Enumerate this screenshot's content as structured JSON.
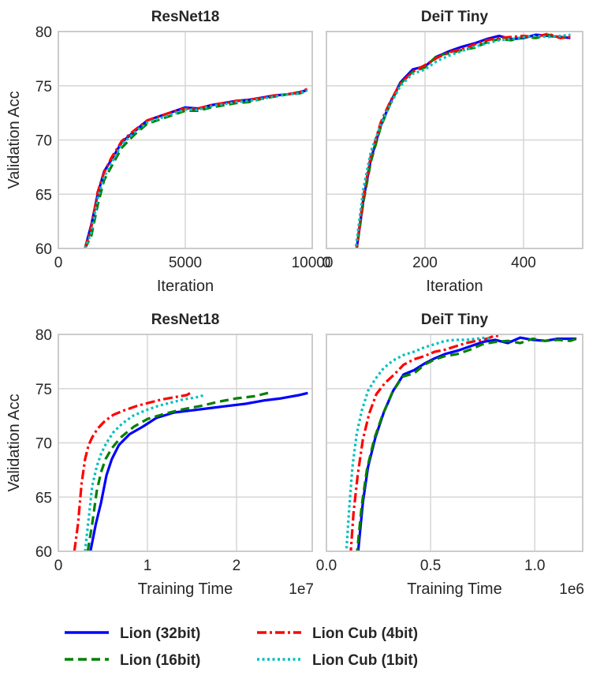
{
  "chart_data": [
    {
      "type": "line",
      "title": "ResNet18",
      "xlabel": "Iteration",
      "ylabel": "Validation Acc",
      "xlim": [
        0,
        10000
      ],
      "ylim": [
        60,
        80
      ],
      "xticks": [
        0,
        5000,
        10000
      ],
      "xtick_labels": [
        "0",
        "5000",
        "10000"
      ],
      "yticks": [
        60,
        65,
        70,
        75,
        80
      ],
      "ytick_labels": [
        "60",
        "65",
        "70",
        "75",
        "80"
      ],
      "x_offset_text": "",
      "series": [
        {
          "name": "Lion (32bit)",
          "x": [
            1050,
            1300,
            1550,
            1800,
            2100,
            2500,
            3000,
            3500,
            4000,
            4500,
            5000,
            5500,
            6000,
            6500,
            7000,
            7500,
            8000,
            8500,
            9000,
            9500,
            9800
          ],
          "y": [
            60.0,
            62.2,
            65.0,
            67.1,
            68.2,
            69.8,
            70.8,
            71.8,
            72.2,
            72.6,
            73.0,
            72.9,
            73.2,
            73.4,
            73.6,
            73.7,
            73.9,
            74.1,
            74.2,
            74.4,
            74.6
          ]
        },
        {
          "name": "Lion (16bit)",
          "x": [
            1050,
            1300,
            1550,
            1800,
            2100,
            2500,
            3000,
            3500,
            4000,
            4500,
            5000,
            5500,
            6000,
            6500,
            7000,
            7500,
            8000,
            8500,
            9000,
            9500,
            9800
          ],
          "y": [
            60.0,
            61.2,
            64.0,
            66.3,
            67.6,
            69.3,
            70.5,
            71.5,
            71.9,
            72.3,
            72.7,
            72.7,
            73.0,
            73.2,
            73.4,
            73.5,
            73.8,
            74.0,
            74.2,
            74.3,
            74.5
          ]
        },
        {
          "name": "Lion Cub (4bit)",
          "x": [
            1050,
            1300,
            1550,
            1800,
            2100,
            2500,
            3000,
            3500,
            4000,
            4500,
            5000,
            5500,
            6000,
            6500,
            7000,
            7500,
            8000,
            8500,
            9000,
            9500,
            9800
          ],
          "y": [
            60.0,
            62.0,
            65.2,
            67.0,
            68.4,
            69.9,
            70.9,
            71.8,
            72.2,
            72.6,
            72.9,
            72.9,
            73.2,
            73.4,
            73.6,
            73.7,
            73.9,
            74.1,
            74.2,
            74.4,
            74.7
          ]
        },
        {
          "name": "Lion Cub (1bit)",
          "x": [
            1050,
            1300,
            1550,
            1800,
            2100,
            2500,
            3000,
            3500,
            4000,
            4500,
            5000,
            5500,
            6000,
            6500,
            7000,
            7500,
            8000,
            8500,
            9000,
            9500,
            9800
          ],
          "y": [
            60.0,
            61.5,
            64.6,
            66.6,
            67.9,
            69.6,
            70.7,
            71.6,
            72.0,
            72.4,
            72.8,
            72.8,
            73.1,
            73.3,
            73.5,
            73.6,
            73.8,
            74.0,
            74.2,
            74.3,
            74.6
          ]
        }
      ]
    },
    {
      "type": "line",
      "title": "DeiT Tiny",
      "xlabel": "Iteration",
      "ylabel": "",
      "xlim": [
        0,
        520
      ],
      "ylim": [
        60,
        80
      ],
      "xticks": [
        0,
        200,
        400
      ],
      "xtick_labels": [
        "0",
        "200",
        "400"
      ],
      "yticks": [
        60,
        65,
        70,
        75,
        80
      ],
      "ytick_labels": [],
      "x_offset_text": "",
      "series": [
        {
          "name": "Lion (32bit)",
          "x": [
            60,
            75,
            90,
            110,
            130,
            150,
            175,
            200,
            225,
            250,
            275,
            300,
            325,
            350,
            375,
            400,
            425,
            450,
            475,
            495
          ],
          "y": [
            59.5,
            64.5,
            68.2,
            71.3,
            73.5,
            75.3,
            76.5,
            76.8,
            77.7,
            78.2,
            78.6,
            78.9,
            79.3,
            79.6,
            79.3,
            79.4,
            79.7,
            79.6,
            79.5,
            79.4
          ]
        },
        {
          "name": "Lion (16bit)",
          "x": [
            60,
            75,
            90,
            110,
            130,
            150,
            175,
            200,
            225,
            250,
            275,
            300,
            325,
            350,
            375,
            400,
            425,
            450,
            475,
            495
          ],
          "y": [
            59.5,
            64.3,
            68.0,
            71.2,
            73.4,
            75.2,
            76.3,
            76.7,
            77.8,
            78.0,
            78.3,
            78.5,
            79.0,
            79.3,
            79.2,
            79.5,
            79.4,
            79.7,
            79.4,
            79.6
          ]
        },
        {
          "name": "Lion Cub (4bit)",
          "x": [
            60,
            75,
            90,
            110,
            130,
            150,
            175,
            200,
            225,
            250,
            275,
            300,
            325,
            350,
            375,
            400,
            425,
            450,
            475,
            495
          ],
          "y": [
            59.6,
            64.8,
            68.5,
            71.6,
            73.6,
            75.2,
            76.3,
            76.9,
            77.6,
            78.1,
            78.4,
            78.8,
            79.2,
            79.4,
            79.5,
            79.6,
            79.5,
            79.8,
            79.4,
            79.5
          ]
        },
        {
          "name": "Lion Cub (1bit)",
          "x": [
            60,
            75,
            90,
            110,
            130,
            150,
            175,
            200,
            225,
            250,
            275,
            300,
            325,
            350,
            375,
            400,
            425,
            450,
            475,
            495
          ],
          "y": [
            60.2,
            65.5,
            68.9,
            71.4,
            73.3,
            75.0,
            76.1,
            76.5,
            77.3,
            77.8,
            78.2,
            78.6,
            78.9,
            79.2,
            79.3,
            79.5,
            79.6,
            79.5,
            79.6,
            79.7
          ]
        }
      ]
    },
    {
      "type": "line",
      "title": "ResNet18",
      "xlabel": "Training Time",
      "ylabel": "Validation Acc",
      "xlim": [
        0,
        28500000
      ],
      "ylim": [
        60,
        80
      ],
      "xticks": [
        0,
        10000000,
        20000000
      ],
      "xtick_labels": [
        "0",
        "1",
        "2"
      ],
      "yticks": [
        60,
        65,
        70,
        75,
        80
      ],
      "ytick_labels": [
        "60",
        "65",
        "70",
        "75",
        "80"
      ],
      "x_offset_text": "1e7",
      "series": [
        {
          "name": "Lion (32bit)",
          "x": [
            3600000,
            4200000,
            4800000,
            5400000,
            6000000,
            6800000,
            8000000,
            9500000,
            11000000,
            13000000,
            15000000,
            17000000,
            19000000,
            21000000,
            23000000,
            25000000,
            27000000,
            28000000
          ],
          "y": [
            60.0,
            62.5,
            64.5,
            67.0,
            68.5,
            69.8,
            70.8,
            71.5,
            72.3,
            72.8,
            73.0,
            73.2,
            73.4,
            73.6,
            73.9,
            74.1,
            74.4,
            74.6
          ]
        },
        {
          "name": "Lion (16bit)",
          "x": [
            3300000,
            3800000,
            4300000,
            4800000,
            5300000,
            6000000,
            7000000,
            8500000,
            10000000,
            12000000,
            14000000,
            16000000,
            18000000,
            20000000,
            22000000,
            24000000
          ],
          "y": [
            60.0,
            62.5,
            65.5,
            67.3,
            68.5,
            69.5,
            70.5,
            71.5,
            72.2,
            72.7,
            73.1,
            73.4,
            73.8,
            74.1,
            74.3,
            74.7
          ]
        },
        {
          "name": "Lion Cub (4bit)",
          "x": [
            1800000,
            2200000,
            2600000,
            3000000,
            3400000,
            3800000,
            4400000,
            5200000,
            6200000,
            7400000,
            8800000,
            10200000,
            11600000,
            13000000,
            14400000,
            15000000
          ],
          "y": [
            60.0,
            62.5,
            66.2,
            68.5,
            69.8,
            70.5,
            71.3,
            72.0,
            72.6,
            73.0,
            73.4,
            73.7,
            74.0,
            74.2,
            74.4,
            74.7
          ]
        },
        {
          "name": "Lion Cub (1bit)",
          "x": [
            3000000,
            3400000,
            3800000,
            4300000,
            4800000,
            5400000,
            6200000,
            7200000,
            8400000,
            9800000,
            11200000,
            12600000,
            14000000,
            15500000,
            16400000
          ],
          "y": [
            60.0,
            63.0,
            66.0,
            67.8,
            69.0,
            70.0,
            71.0,
            71.8,
            72.5,
            73.0,
            73.4,
            73.7,
            74.0,
            74.2,
            74.4
          ]
        }
      ]
    },
    {
      "type": "line",
      "title": "DeiT Tiny",
      "xlabel": "Training Time",
      "ylabel": "",
      "xlim": [
        0,
        1230000
      ],
      "ylim": [
        60,
        80
      ],
      "xticks": [
        0,
        500000,
        1000000
      ],
      "xtick_labels": [
        "0.0",
        "0.5",
        "1.0"
      ],
      "yticks": [
        60,
        65,
        70,
        75,
        80
      ],
      "ytick_labels": [],
      "x_offset_text": "1e6",
      "series": [
        {
          "name": "Lion (32bit)",
          "x": [
            150000,
            175000,
            200000,
            235000,
            275000,
            320000,
            370000,
            420000,
            470000,
            520000,
            570000,
            630000,
            690000,
            750000,
            810000,
            870000,
            930000,
            990000,
            1050000,
            1110000,
            1170000,
            1200000
          ],
          "y": [
            59.5,
            64.5,
            67.8,
            70.5,
            72.8,
            74.8,
            76.3,
            76.7,
            77.3,
            77.8,
            78.2,
            78.5,
            78.9,
            79.3,
            79.5,
            79.2,
            79.7,
            79.5,
            79.4,
            79.6,
            79.6,
            79.6
          ]
        },
        {
          "name": "Lion (16bit)",
          "x": [
            145000,
            170000,
            195000,
            230000,
            270000,
            315000,
            365000,
            420000,
            470000,
            520000,
            570000,
            630000,
            690000,
            750000,
            810000,
            870000,
            930000,
            990000,
            1050000,
            1110000,
            1170000,
            1200000
          ],
          "y": [
            59.5,
            64.3,
            67.6,
            70.4,
            72.6,
            74.6,
            76.1,
            76.4,
            77.2,
            77.7,
            78.0,
            78.2,
            78.6,
            79.1,
            79.3,
            79.4,
            79.2,
            79.6,
            79.4,
            79.5,
            79.4,
            79.6
          ]
        },
        {
          "name": "Lion Cub (4bit)",
          "x": [
            115000,
            130000,
            150000,
            175000,
            205000,
            240000,
            280000,
            325000,
            370000,
            420000,
            470000,
            520000,
            570000,
            620000,
            670000,
            720000,
            770000,
            810000,
            840000
          ],
          "y": [
            59.5,
            63.5,
            67.0,
            70.3,
            72.7,
            74.5,
            75.5,
            76.3,
            77.2,
            77.7,
            78.0,
            78.4,
            78.6,
            78.9,
            79.2,
            79.4,
            79.6,
            79.9,
            79.8
          ]
        },
        {
          "name": "Lion Cub (1bit)",
          "x": [
            95000,
            110000,
            125000,
            145000,
            170000,
            200000,
            235000,
            275000,
            320000,
            370000,
            420000,
            470000,
            520000,
            570000,
            620000,
            670000,
            720000,
            760000,
            790000
          ],
          "y": [
            59.8,
            64.2,
            67.8,
            70.8,
            73.0,
            74.8,
            75.9,
            76.9,
            77.6,
            78.1,
            78.4,
            78.8,
            79.1,
            79.4,
            79.5,
            79.5,
            79.6,
            79.7,
            79.6
          ]
        }
      ]
    }
  ],
  "legend": {
    "placement": "bottom",
    "items": [
      {
        "label": "Lion (32bit)",
        "color": "#0000ff",
        "style": "solid"
      },
      {
        "label": "Lion Cub (4bit)",
        "color": "#ff0000",
        "style": "dashdot"
      },
      {
        "label": "Lion (16bit)",
        "color": "#008000",
        "style": "dashed"
      },
      {
        "label": "Lion Cub (1bit)",
        "color": "#00bfbf",
        "style": "dotted"
      }
    ]
  },
  "colors": {
    "Lion (32bit)": "#0000ff",
    "Lion (16bit)": "#008000",
    "Lion Cub (4bit)": "#ff0000",
    "Lion Cub (1bit)": "#00bfbf",
    "grid": "#d6d6d6",
    "frame": "#cccccc",
    "text": "#262626"
  }
}
